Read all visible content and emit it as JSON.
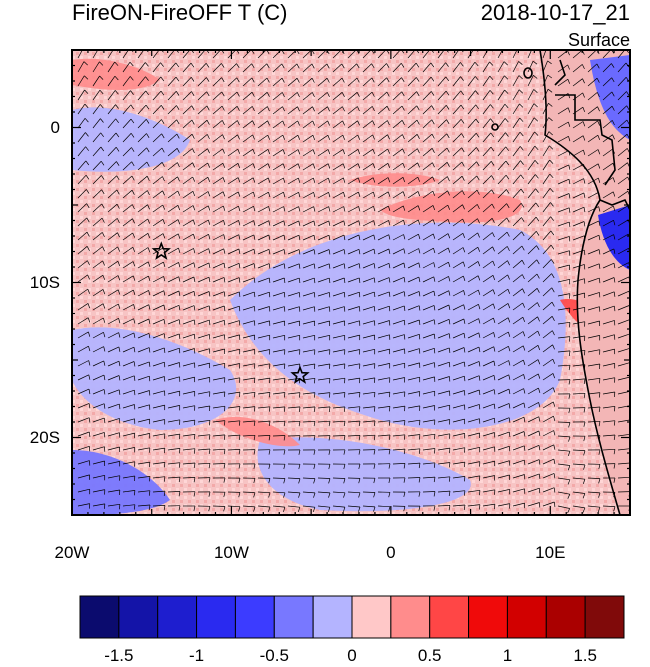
{
  "title_left": "FireON-FireOFF T (C)",
  "title_right": "2018-10-17_21",
  "level_label": "Surface",
  "x_axis": {
    "ticks": [
      {
        "value": -20,
        "label": "20W"
      },
      {
        "value": -10,
        "label": "10W"
      },
      {
        "value": 0,
        "label": "0"
      },
      {
        "value": 10,
        "label": "10E"
      }
    ],
    "range": [
      -20,
      15
    ]
  },
  "y_axis": {
    "ticks": [
      {
        "value": 0,
        "label": "0"
      },
      {
        "value": -10,
        "label": "10S"
      },
      {
        "value": -20,
        "label": "20S"
      }
    ],
    "range": [
      -25,
      5
    ]
  },
  "markers": [
    {
      "lon": -14.4,
      "lat": -8.0,
      "symbol": "star"
    },
    {
      "lon": -5.7,
      "lat": -16.0,
      "symbol": "star"
    }
  ],
  "colorbar": {
    "colors": [
      "#0b0b6e",
      "#1414a8",
      "#1e1ecf",
      "#2a2af0",
      "#3c3cff",
      "#7878ff",
      "#b4b4ff",
      "#ffc8c8",
      "#ff8c8c",
      "#ff4646",
      "#f00a0a",
      "#d20000",
      "#aa0000",
      "#800a0a"
    ],
    "labels": [
      "-1.5",
      "-1",
      "-0.5",
      "0",
      "0.5",
      "1",
      "1.5"
    ],
    "label_positions": [
      1,
      3,
      5,
      7,
      9,
      11,
      13
    ]
  },
  "colors": {
    "neutral_pink": "#f7c4c4",
    "light_blue": "#b4b4ff",
    "coast": "#000000"
  }
}
